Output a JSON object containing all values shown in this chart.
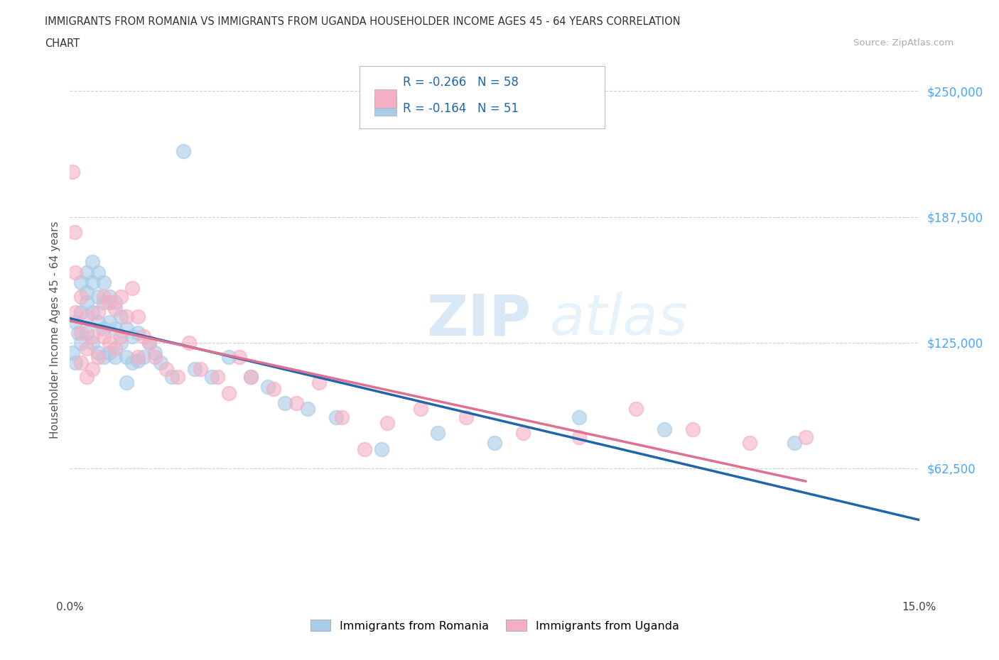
{
  "title_line1": "IMMIGRANTS FROM ROMANIA VS IMMIGRANTS FROM UGANDA HOUSEHOLDER INCOME AGES 45 - 64 YEARS CORRELATION",
  "title_line2": "CHART",
  "source": "Source: ZipAtlas.com",
  "ylabel": "Householder Income Ages 45 - 64 years",
  "xlim": [
    0.0,
    0.15
  ],
  "ylim": [
    0,
    262500
  ],
  "yticks": [
    62500,
    125000,
    187500,
    250000
  ],
  "ytick_labels": [
    "$62,500",
    "$125,000",
    "$187,500",
    "$250,000"
  ],
  "xticks": [
    0.0,
    0.03,
    0.06,
    0.09,
    0.12,
    0.15
  ],
  "xtick_labels": [
    "0.0%",
    "",
    "",
    "",
    "",
    "15.0%"
  ],
  "romania_R": -0.266,
  "romania_N": 58,
  "uganda_R": -0.164,
  "uganda_N": 51,
  "romania_color": "#a8cce8",
  "uganda_color": "#f4afc4",
  "romania_line_color": "#2166ac",
  "uganda_line_color": "#e07090",
  "background_color": "#ffffff",
  "watermark_zip": "ZIP",
  "watermark_atlas": "atlas",
  "legend_label_romania": "Immigrants from Romania",
  "legend_label_uganda": "Immigrants from Uganda",
  "romania_x": [
    0.0005,
    0.001,
    0.001,
    0.0015,
    0.002,
    0.002,
    0.002,
    0.003,
    0.003,
    0.003,
    0.003,
    0.004,
    0.004,
    0.004,
    0.004,
    0.005,
    0.005,
    0.005,
    0.005,
    0.006,
    0.006,
    0.006,
    0.006,
    0.007,
    0.007,
    0.007,
    0.008,
    0.008,
    0.008,
    0.009,
    0.009,
    0.01,
    0.01,
    0.01,
    0.011,
    0.011,
    0.012,
    0.012,
    0.013,
    0.014,
    0.015,
    0.016,
    0.018,
    0.02,
    0.022,
    0.025,
    0.028,
    0.032,
    0.035,
    0.038,
    0.042,
    0.047,
    0.055,
    0.065,
    0.075,
    0.09,
    0.105,
    0.128
  ],
  "romania_y": [
    120000,
    135000,
    115000,
    130000,
    140000,
    155000,
    125000,
    150000,
    160000,
    130000,
    145000,
    155000,
    165000,
    140000,
    125000,
    160000,
    148000,
    135000,
    120000,
    155000,
    145000,
    132000,
    118000,
    148000,
    135000,
    120000,
    145000,
    132000,
    118000,
    138000,
    125000,
    132000,
    118000,
    105000,
    128000,
    115000,
    130000,
    116000,
    118000,
    125000,
    120000,
    115000,
    108000,
    220000,
    112000,
    108000,
    118000,
    108000,
    103000,
    95000,
    92000,
    88000,
    72000,
    80000,
    75000,
    88000,
    82000,
    75000
  ],
  "uganda_x": [
    0.0004,
    0.0008,
    0.001,
    0.001,
    0.002,
    0.002,
    0.002,
    0.003,
    0.003,
    0.003,
    0.004,
    0.004,
    0.005,
    0.005,
    0.006,
    0.006,
    0.007,
    0.007,
    0.008,
    0.008,
    0.009,
    0.009,
    0.01,
    0.011,
    0.012,
    0.012,
    0.013,
    0.014,
    0.015,
    0.017,
    0.019,
    0.021,
    0.023,
    0.026,
    0.028,
    0.03,
    0.032,
    0.036,
    0.04,
    0.044,
    0.048,
    0.052,
    0.056,
    0.062,
    0.07,
    0.08,
    0.09,
    0.1,
    0.11,
    0.12,
    0.13
  ],
  "uganda_y": [
    210000,
    180000,
    160000,
    140000,
    148000,
    130000,
    115000,
    138000,
    122000,
    108000,
    128000,
    112000,
    140000,
    118000,
    148000,
    128000,
    145000,
    125000,
    142000,
    122000,
    148000,
    128000,
    138000,
    152000,
    138000,
    118000,
    128000,
    125000,
    118000,
    112000,
    108000,
    125000,
    112000,
    108000,
    100000,
    118000,
    108000,
    102000,
    95000,
    105000,
    88000,
    72000,
    85000,
    92000,
    88000,
    80000,
    78000,
    92000,
    82000,
    75000,
    78000
  ]
}
